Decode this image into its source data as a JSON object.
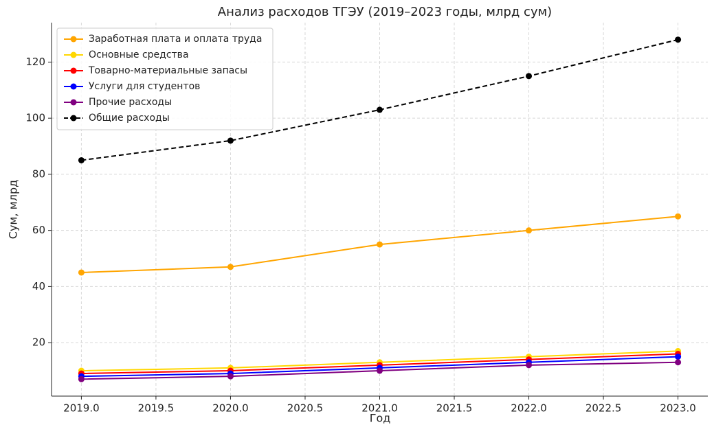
{
  "chart_data": {
    "type": "line",
    "title": "Анализ расходов ТГЭУ (2019–2023 годы, млрд сум)",
    "x_label": "Год",
    "y_label": "Сум, млрд",
    "x": [
      2019,
      2020,
      2021,
      2022,
      2023
    ],
    "series": [
      {
        "name": "Заработная плата и оплата труда",
        "color": "#FFA500",
        "values": [
          45,
          47,
          55,
          60,
          65
        ]
      },
      {
        "name": "Основные средства",
        "color": "#FFD700",
        "values": [
          10,
          11,
          13,
          15,
          17
        ]
      },
      {
        "name": "Товарно-материальные запасы",
        "color": "#FF0000",
        "values": [
          9,
          10,
          12,
          14,
          16
        ]
      },
      {
        "name": "Услуги для студентов",
        "color": "#0000FF",
        "values": [
          8,
          9,
          11,
          13,
          15
        ]
      },
      {
        "name": "Прочие расходы",
        "color": "#800080",
        "values": [
          7,
          8,
          10,
          12,
          13
        ]
      },
      {
        "name": "Общие расходы",
        "color": "#000000",
        "linestyle": "dashed",
        "values": [
          85,
          92,
          103,
          115,
          128
        ]
      }
    ],
    "xlim": [
      2018.8,
      2023.2
    ],
    "xticks": [
      {
        "value": 2019,
        "label": "2019.0"
      },
      {
        "value": 2019.5,
        "label": "2019.5"
      },
      {
        "value": 2020,
        "label": "2020.0"
      },
      {
        "value": 2020.5,
        "label": "2020.5"
      },
      {
        "value": 2021,
        "label": "2021.0"
      },
      {
        "value": 2021.5,
        "label": "2021.5"
      },
      {
        "value": 2022,
        "label": "2022.0"
      },
      {
        "value": 2022.5,
        "label": "2022.5"
      },
      {
        "value": 2023,
        "label": "2023.0"
      }
    ],
    "ylim": [
      0.95,
      134.05
    ],
    "yticks": [
      20,
      40,
      60,
      80,
      100,
      120
    ],
    "grid": true,
    "legend": "upper left"
  }
}
